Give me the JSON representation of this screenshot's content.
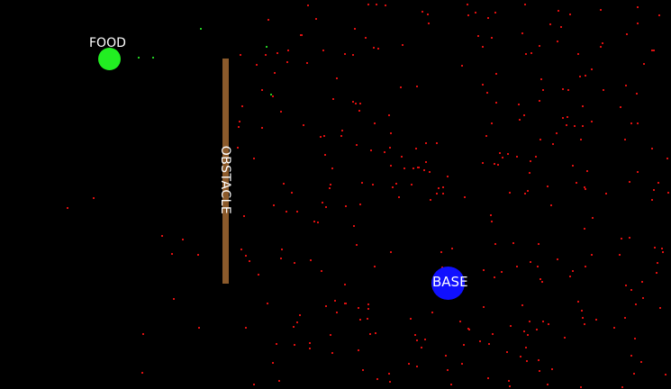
{
  "colors": {
    "background": "#000000",
    "food": "#22ee22",
    "food_trail": "#22cc22",
    "obstacle": "#8b5a2b",
    "base": "#1010ff",
    "ant": "#dd1010",
    "label": "#ffffff"
  },
  "food": {
    "label": "FOOD"
  },
  "obstacle": {
    "label": "OBSTACLE"
  },
  "base": {
    "label": "BASE"
  }
}
